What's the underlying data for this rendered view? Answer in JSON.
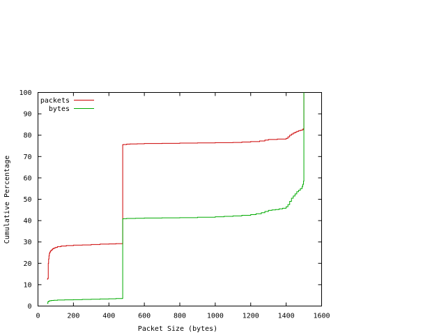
{
  "chart_data": {
    "type": "line",
    "xlabel": "Packet Size (bytes)",
    "ylabel": "Cumulative Percentage",
    "xlim": [
      0,
      1600
    ],
    "ylim": [
      0,
      100
    ],
    "xticks": [
      "0",
      "200",
      "400",
      "600",
      "800",
      "1000",
      "1200",
      "1400",
      "1600"
    ],
    "yticks": [
      "0",
      "10",
      "20",
      "30",
      "40",
      "50",
      "60",
      "70",
      "80",
      "90",
      "100"
    ],
    "grid": false,
    "legend_position": "top-left",
    "series": [
      {
        "name": "packets",
        "color": "#cc0000",
        "x": [
          52,
          54,
          56,
          58,
          60,
          62,
          64,
          66,
          70,
          76,
          82,
          90,
          100,
          110,
          130,
          160,
          200,
          250,
          300,
          350,
          400,
          440,
          476,
          478,
          480,
          500,
          520,
          560,
          600,
          700,
          800,
          900,
          1000,
          1100,
          1150,
          1200,
          1250,
          1280,
          1300,
          1350,
          1400,
          1410,
          1420,
          1430,
          1440,
          1450,
          1460,
          1470,
          1480,
          1490,
          1496,
          1500,
          1500
        ],
        "y": [
          12.5,
          12.8,
          13,
          20,
          22,
          23.5,
          24.5,
          25.2,
          25.8,
          26.3,
          26.8,
          27.2,
          27.5,
          27.8,
          28.1,
          28.3,
          28.5,
          28.6,
          28.8,
          29,
          29.1,
          29.2,
          29.2,
          75.5,
          75.6,
          75.8,
          75.9,
          76,
          76.1,
          76.2,
          76.3,
          76.4,
          76.5,
          76.6,
          76.8,
          77,
          77.3,
          77.7,
          78,
          78.2,
          78.5,
          79.2,
          80,
          80.5,
          81,
          81.4,
          81.8,
          82.1,
          82.3,
          82.5,
          83,
          83.5,
          100
        ]
      },
      {
        "name": "bytes",
        "color": "#00aa00",
        "x": [
          52,
          56,
          60,
          66,
          76,
          90,
          110,
          150,
          200,
          250,
          300,
          350,
          400,
          440,
          476,
          478,
          480,
          500,
          550,
          600,
          700,
          800,
          900,
          1000,
          1050,
          1100,
          1150,
          1200,
          1230,
          1260,
          1280,
          1300,
          1320,
          1340,
          1360,
          1380,
          1400,
          1410,
          1420,
          1430,
          1440,
          1450,
          1460,
          1470,
          1480,
          1490,
          1494,
          1498,
          1500,
          1500
        ],
        "y": [
          1.2,
          2,
          2.3,
          2.5,
          2.6,
          2.7,
          2.8,
          2.9,
          3,
          3.1,
          3.2,
          3.3,
          3.4,
          3.5,
          3.6,
          40.8,
          40.9,
          41,
          41.1,
          41.2,
          41.3,
          41.4,
          41.6,
          41.8,
          42,
          42.2,
          42.5,
          42.8,
          43.2,
          43.7,
          44.3,
          44.8,
          45,
          45.2,
          45.5,
          45.8,
          46.5,
          47.5,
          49,
          50.5,
          51.5,
          52.5,
          53.5,
          54.2,
          55,
          56,
          57,
          58.5,
          63,
          100
        ]
      }
    ]
  }
}
